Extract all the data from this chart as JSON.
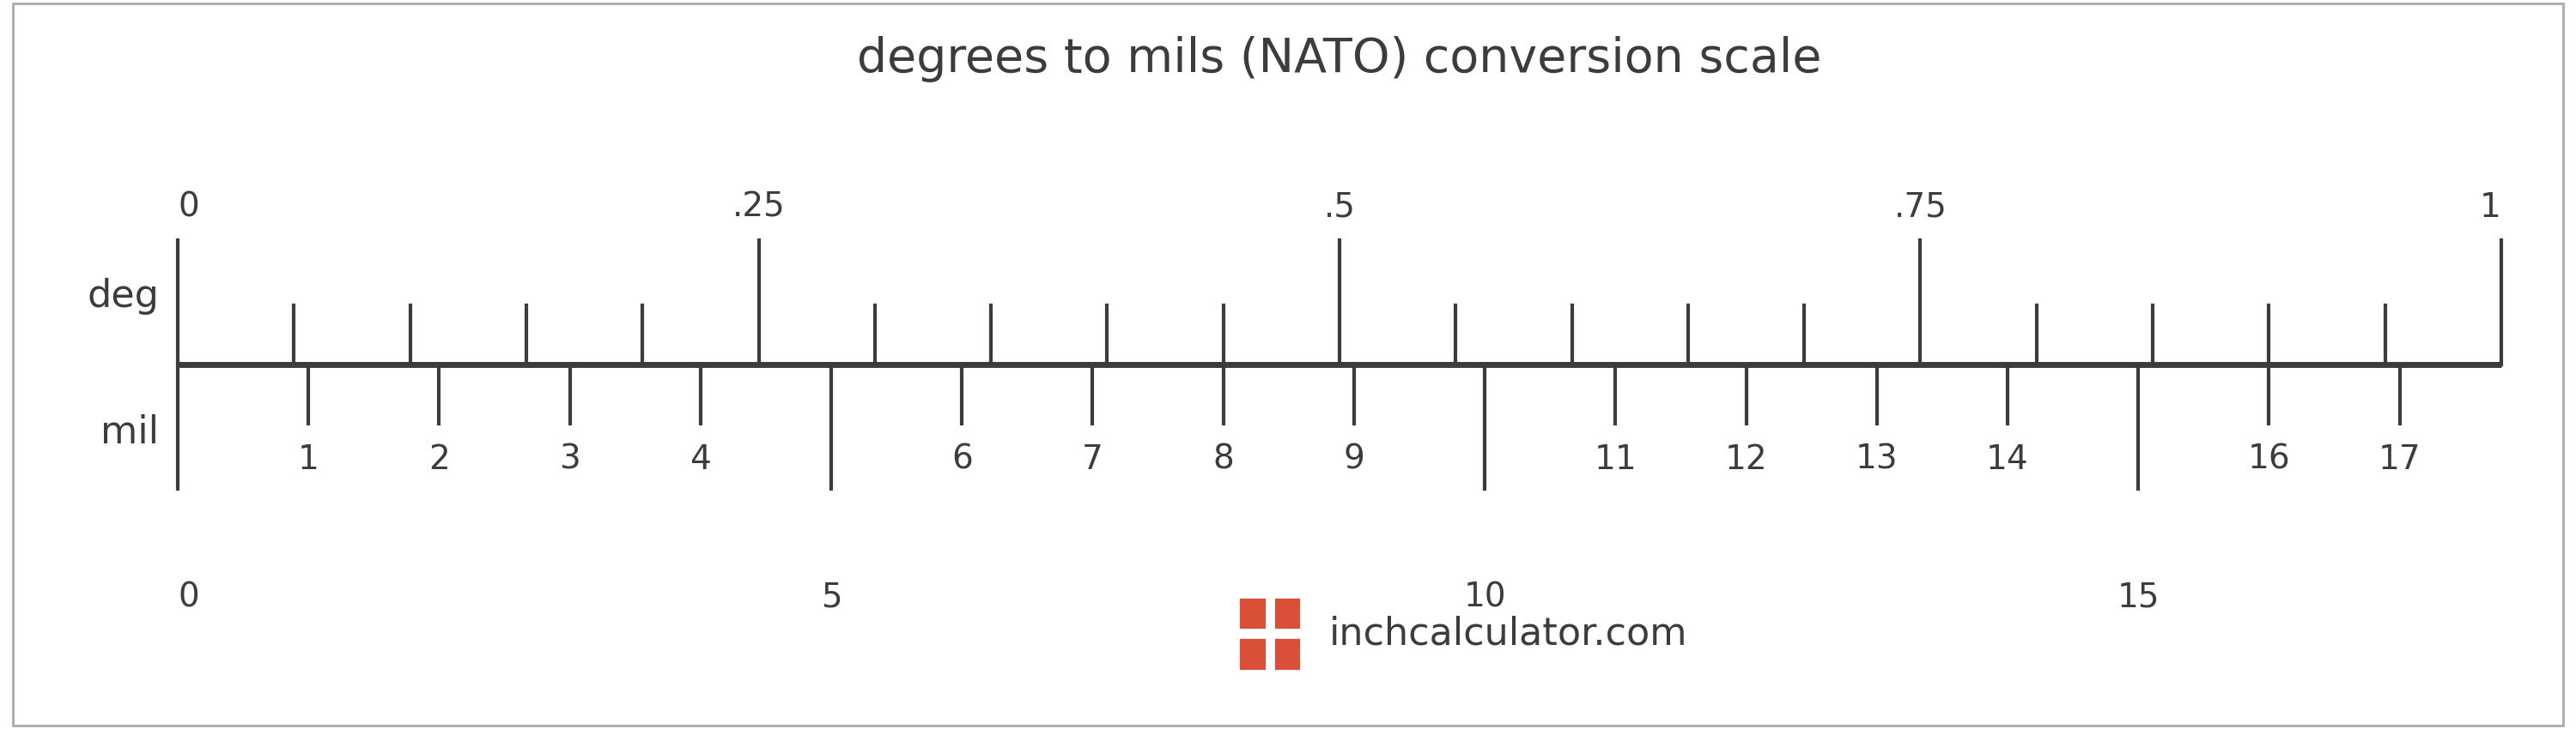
{
  "title": "degrees to mils (NATO) conversion scale",
  "title_fontsize": 40,
  "deg_label": "deg",
  "mil_label": "mil",
  "label_fontsize": 32,
  "tick_label_fontsize": 28,
  "deg_min": 0,
  "deg_max": 1,
  "mil_per_deg": 17.7778,
  "deg_major_ticks": [
    0,
    0.25,
    0.5,
    0.75,
    1
  ],
  "deg_major_labels": [
    "0",
    ".25",
    ".5",
    ".75",
    "1"
  ],
  "deg_minor_ticks": [
    0.05,
    0.1,
    0.15,
    0.2,
    0.3,
    0.35,
    0.4,
    0.45,
    0.55,
    0.6,
    0.65,
    0.7,
    0.8,
    0.85,
    0.9,
    0.95
  ],
  "mil_major_ticks": [
    0,
    5,
    10,
    15
  ],
  "mil_minor_ticks": [
    1,
    2,
    3,
    4,
    6,
    7,
    8,
    9,
    11,
    12,
    13,
    14,
    16,
    17
  ],
  "scale_color": "#3c3c3c",
  "tick_color": "#3c3c3c",
  "text_color": "#3c3c3c",
  "background_color": "#ffffff",
  "logo_text": "inchcalculator.com",
  "logo_fontsize": 32,
  "logo_color": "#3c3c3c",
  "logo_icon_color": "#d94f38",
  "border_color": "#aaaaaa"
}
